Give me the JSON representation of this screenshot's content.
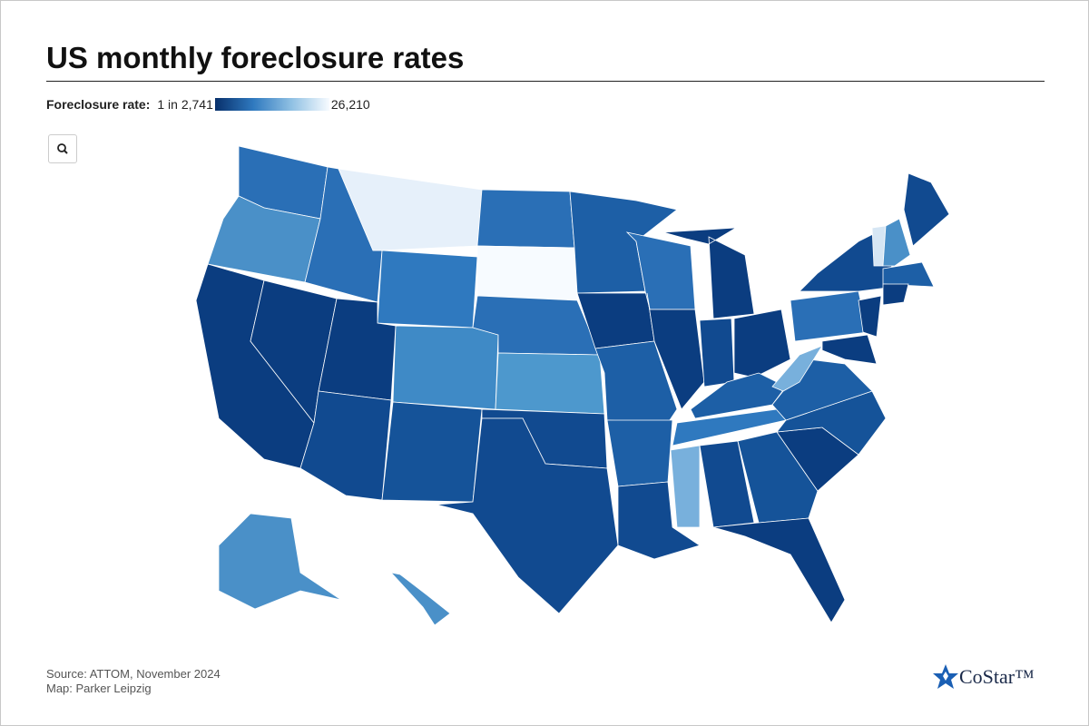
{
  "header": {
    "title": "US monthly foreclosure rates"
  },
  "legend": {
    "label": "Foreclosure rate:",
    "min_label": "1 in 2,741",
    "max_label": "26,210"
  },
  "footer": {
    "source": "Source: ATTOM, November 2024",
    "credit": "Map: Parker Leipzig"
  },
  "logo": "CoStar™"
}
